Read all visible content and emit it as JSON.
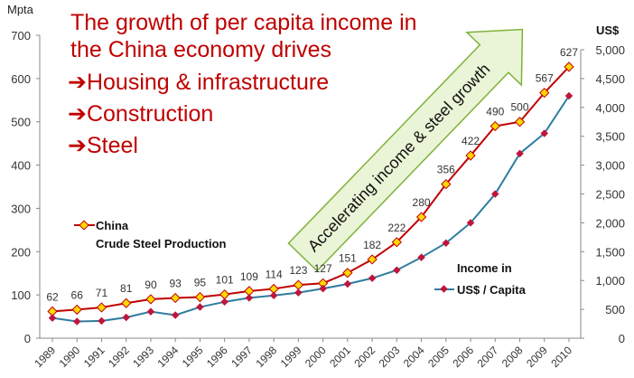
{
  "title_lines": [
    "The growth of per capita income in",
    "the China economy drives"
  ],
  "bullets": [
    {
      "arrow": "➔",
      "text": "Housing & infrastructure"
    },
    {
      "arrow": "➔",
      "text": "Construction"
    },
    {
      "arrow": "➔",
      "text": "Steel"
    }
  ],
  "arrow_annotation": "Accelerating income & steel growth",
  "colors": {
    "steel_line": "#C00000",
    "steel_marker": "#FFD700",
    "income_line": "#2E7D9E",
    "income_marker": "#C0143C",
    "title": "#C00000",
    "arrow_fill": "#EAF4D6",
    "arrow_stroke": "#7FB239"
  },
  "chart_data": {
    "type": "line",
    "x": [
      "1989",
      "1990",
      "1991",
      "1992",
      "1993",
      "1994",
      "1995",
      "1996",
      "1997",
      "1998",
      "1999",
      "2000",
      "2001",
      "2002",
      "2003",
      "2004",
      "2005",
      "2006",
      "2007",
      "2008",
      "2009",
      "2010"
    ],
    "left_axis": {
      "label": "Mpta",
      "range": [
        0,
        700
      ],
      "ticks": [
        0,
        100,
        200,
        300,
        400,
        500,
        600,
        700
      ]
    },
    "right_axis": {
      "label": "US$",
      "range": [
        0,
        5000
      ],
      "ticks": [
        "0",
        "500",
        "1,000",
        "1,500",
        "2,000",
        "2,500",
        "3,000",
        "3,500",
        "4,000",
        "4,500",
        "5,000"
      ],
      "tick_values": [
        0,
        500,
        1000,
        1500,
        2000,
        2500,
        3000,
        3500,
        4000,
        4500,
        5000
      ]
    },
    "series": [
      {
        "name": "China Crude Steel Production",
        "legend": [
          "China",
          "Crude Steel Production"
        ],
        "axis": "left",
        "values": [
          62,
          66,
          71,
          81,
          90,
          93,
          95,
          101,
          109,
          114,
          123,
          127,
          151,
          182,
          222,
          280,
          356,
          422,
          490,
          500,
          567,
          627
        ],
        "labels": [
          "62",
          "66",
          "71",
          "81",
          "90",
          "93",
          "95",
          "101",
          "109",
          "114",
          "123",
          "127",
          "151",
          "182",
          "222",
          "280",
          "356",
          "422",
          "490",
          "500",
          "567",
          "627"
        ]
      },
      {
        "name": "Income in US$ / Capita",
        "legend": [
          "Income in",
          "US$ / Capita"
        ],
        "axis": "right",
        "values": [
          350,
          290,
          300,
          360,
          460,
          400,
          540,
          630,
          700,
          740,
          790,
          860,
          940,
          1040,
          1180,
          1400,
          1650,
          2000,
          2500,
          3200,
          3550,
          4200
        ]
      }
    ]
  }
}
